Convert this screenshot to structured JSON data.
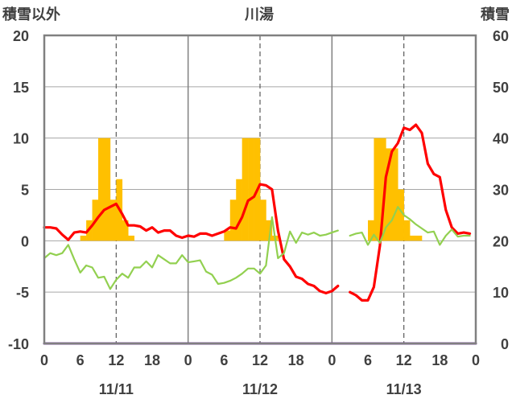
{
  "chart_data": {
    "type": "line",
    "title": "川湯",
    "ylabel_left": "積雪以外",
    "ylabel_right": "積雪",
    "y_left_ticks": [
      "20",
      "15",
      "10",
      "5",
      "0",
      "-5",
      "-10"
    ],
    "y_left_range": [
      -10,
      20
    ],
    "y_right_ticks": [
      "60",
      "50",
      "40",
      "30",
      "20",
      "10",
      "0"
    ],
    "y_right_range": [
      0,
      60
    ],
    "x_hour_ticks": [
      "0",
      "6",
      "12",
      "18",
      "0",
      "6",
      "12",
      "18",
      "0",
      "6",
      "12",
      "18",
      "0"
    ],
    "date_labels": [
      "11/11",
      "11/12",
      "11/13"
    ],
    "x_range_hours": [
      0,
      72
    ],
    "grid": true,
    "colors": {
      "bars": "#FFC000",
      "red_line": "#FF0000",
      "green_line": "#92D050",
      "purple_line": "#7030A0",
      "frame": "#808080"
    },
    "bar_series": {
      "name": "",
      "axis": "left",
      "hours": [
        6,
        7,
        8,
        9,
        10,
        11,
        12,
        13,
        14,
        30,
        31,
        32,
        33,
        34,
        35,
        36,
        37,
        38,
        54,
        55,
        56,
        57,
        58,
        59,
        60,
        61,
        62
      ],
      "values": [
        0.5,
        2.0,
        4.0,
        10.0,
        10.0,
        4.0,
        6.0,
        2.0,
        0.5,
        1.0,
        4.0,
        6.0,
        10.0,
        10.0,
        10.0,
        4.0,
        2.0,
        0.5,
        2.0,
        10.0,
        10.0,
        9.0,
        9.0,
        5.0,
        2.0,
        0.5,
        0.5
      ]
    },
    "series": [
      {
        "name": "",
        "color": "#FF0000",
        "axis": "left",
        "segments": [
          {
            "x": [
              0,
              1,
              2,
              3,
              4,
              5,
              6,
              7,
              8,
              9,
              10,
              11,
              12,
              13,
              14,
              15,
              16,
              17,
              18,
              19,
              20,
              21,
              22,
              23,
              24,
              25,
              26,
              27,
              28,
              29,
              30,
              31,
              32,
              33,
              34,
              35,
              36,
              37,
              38,
              39,
              40,
              41,
              42,
              43,
              44,
              45,
              46,
              47,
              48,
              49
            ],
            "y": [
              1.3,
              1.3,
              1.2,
              0.6,
              0.1,
              0.8,
              0.9,
              0.8,
              1.5,
              2.3,
              3.0,
              3.3,
              3.6,
              2.6,
              1.5,
              1.5,
              1.4,
              1.0,
              1.3,
              0.8,
              1.0,
              1.0,
              0.5,
              0.3,
              0.5,
              0.4,
              0.7,
              0.7,
              0.5,
              0.7,
              0.9,
              1.3,
              1.2,
              2.3,
              3.9,
              4.3,
              5.5,
              5.4,
              5.0,
              1.0,
              -1.8,
              -2.5,
              -3.5,
              -3.7,
              -4.2,
              -4.4,
              -4.9,
              -5.1,
              -4.9,
              -4.4
            ]
          },
          {
            "x": [
              51,
              52,
              53,
              54,
              55,
              56,
              57,
              58,
              59,
              60,
              61,
              62,
              63,
              64,
              65,
              66,
              67,
              68,
              69,
              70,
              71
            ],
            "y": [
              -5.0,
              -5.3,
              -5.8,
              -5.8,
              -4.5,
              -0.5,
              6.2,
              8.7,
              9.5,
              11.0,
              10.8,
              11.3,
              10.5,
              7.5,
              6.5,
              6.2,
              3.0,
              1.3,
              0.7,
              0.8,
              0.7
            ]
          }
        ]
      },
      {
        "name": "",
        "color": "#92D050",
        "axis": "left",
        "segments": [
          {
            "x": [
              0,
              1,
              2,
              3,
              4,
              5,
              6,
              7,
              8,
              9,
              10,
              11,
              12,
              13,
              14,
              15,
              16,
              17,
              18,
              19,
              20,
              21,
              22,
              23,
              24,
              25,
              26,
              27,
              28,
              29,
              30,
              31,
              32,
              33,
              34,
              35,
              36,
              37,
              38,
              39,
              40,
              41,
              42,
              43,
              44,
              45,
              46,
              47,
              48,
              49
            ],
            "y": [
              -1.7,
              -1.2,
              -1.4,
              -1.2,
              -0.4,
              -1.8,
              -3.1,
              -2.4,
              -2.6,
              -3.6,
              -3.5,
              -4.7,
              -3.8,
              -3.2,
              -3.6,
              -2.6,
              -2.6,
              -2.0,
              -2.6,
              -1.4,
              -1.8,
              -2.2,
              -2.2,
              -1.4,
              -2.1,
              -2.0,
              -1.9,
              -3.0,
              -3.3,
              -4.2,
              -4.1,
              -3.9,
              -3.6,
              -3.2,
              -2.7,
              -2.7,
              -3.2,
              -2.4,
              2.3,
              -1.7,
              -1.2,
              0.9,
              -0.2,
              0.8,
              0.6,
              0.8,
              0.5,
              0.6,
              0.8,
              1.0
            ]
          },
          {
            "x": [
              51,
              52,
              53,
              54,
              55,
              56,
              57,
              58,
              59,
              60,
              61,
              62,
              63,
              64,
              65,
              66,
              67,
              68,
              69,
              70,
              71
            ],
            "y": [
              0.5,
              0.7,
              0.8,
              -0.4,
              0.6,
              -0.2,
              1.3,
              2.0,
              3.3,
              2.5,
              2.1,
              1.6,
              1.2,
              0.8,
              0.9,
              -0.4,
              0.5,
              1.1,
              0.4,
              0.5,
              0.5
            ]
          }
        ]
      },
      {
        "name": "",
        "color": "#7030A0",
        "axis": "left",
        "segments": [
          {
            "x": [
              0,
              72
            ],
            "y": [
              -10,
              -10
            ]
          }
        ]
      }
    ]
  }
}
